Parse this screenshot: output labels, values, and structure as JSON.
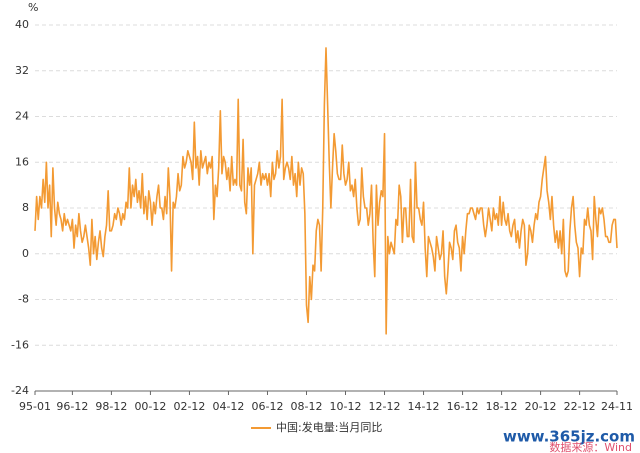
{
  "chart_data": {
    "type": "line",
    "y_label": "%",
    "legend": "中国:发电量:当月同比",
    "source": "数据来源：Wind",
    "watermark": "www.365jz.com",
    "color": "#f39a33",
    "grid": true,
    "ylim": [
      -24,
      40
    ],
    "yticks": [
      40,
      32,
      24,
      16,
      8,
      0,
      -8,
      -16,
      -24
    ],
    "categories": [
      "95-01",
      null,
      null,
      null,
      null,
      null,
      null,
      null,
      null,
      null,
      null,
      null,
      null,
      null,
      null,
      null,
      null,
      null,
      null,
      null,
      null,
      null,
      null,
      "96-12",
      null,
      null,
      null,
      null,
      null,
      null,
      null,
      null,
      null,
      null,
      null,
      null,
      null,
      null,
      null,
      null,
      null,
      null,
      null,
      null,
      null,
      null,
      null,
      "98-12",
      null,
      null,
      null,
      null,
      null,
      null,
      null,
      null,
      null,
      null,
      null,
      null,
      null,
      null,
      null,
      null,
      null,
      null,
      null,
      null,
      null,
      null,
      null,
      "00-12",
      null,
      null,
      null,
      null,
      null,
      null,
      null,
      null,
      null,
      null,
      null,
      null,
      null,
      null,
      null,
      null,
      null,
      null,
      null,
      null,
      null,
      null,
      null,
      "02-12",
      null,
      null,
      null,
      null,
      null,
      null,
      null,
      null,
      null,
      null,
      null,
      null,
      null,
      null,
      null,
      null,
      null,
      null,
      null,
      null,
      null,
      null,
      null,
      "04-12",
      null,
      null,
      null,
      null,
      null,
      null,
      null,
      null,
      null,
      null,
      null,
      null,
      null,
      null,
      null,
      null,
      null,
      null,
      null,
      null,
      null,
      null,
      null,
      "06-12",
      null,
      null,
      null,
      null,
      null,
      null,
      null,
      null,
      null,
      null,
      null,
      null,
      null,
      null,
      null,
      null,
      null,
      null,
      null,
      null,
      null,
      null,
      null,
      "08-12",
      null,
      null,
      null,
      null,
      null,
      null,
      null,
      null,
      null,
      null,
      null,
      null,
      null,
      null,
      null,
      null,
      null,
      null,
      null,
      null,
      null,
      null,
      null,
      "10-12",
      null,
      null,
      null,
      null,
      null,
      null,
      null,
      null,
      null,
      null,
      null,
      null,
      null,
      null,
      null,
      null,
      null,
      null,
      null,
      null,
      null,
      null,
      null,
      "12-12",
      null,
      null,
      null,
      null,
      null,
      null,
      null,
      null,
      null,
      null,
      null,
      null,
      null,
      null,
      null,
      null,
      null,
      null,
      null,
      null,
      null,
      null,
      null,
      "14-12",
      null,
      null,
      null,
      null,
      null,
      null,
      null,
      null,
      null,
      null,
      null,
      null,
      null,
      null,
      null,
      null,
      null,
      null,
      null,
      null,
      null,
      null,
      null,
      "16-12",
      null,
      null,
      null,
      null,
      null,
      null,
      null,
      null,
      null,
      null,
      null,
      null,
      null,
      null,
      null,
      null,
      null,
      null,
      null,
      null,
      null,
      null,
      null,
      "18-12",
      null,
      null,
      null,
      null,
      null,
      null,
      null,
      null,
      null,
      null,
      null,
      null,
      null,
      null,
      null,
      null,
      null,
      null,
      null,
      null,
      null,
      null,
      null,
      "20-12",
      null,
      null,
      null,
      null,
      null,
      null,
      null,
      null,
      null,
      null,
      null,
      null,
      null,
      null,
      null,
      null,
      null,
      null,
      null,
      null,
      null,
      null,
      null,
      "22-12",
      null,
      null,
      null,
      null,
      null,
      null,
      null,
      null,
      null,
      null,
      null,
      null,
      null,
      null,
      null,
      null,
      null,
      null,
      null,
      null,
      null,
      null,
      "24-11"
    ],
    "values": [
      4,
      10,
      6,
      10,
      8,
      13,
      9,
      16,
      8,
      12,
      3,
      15,
      8,
      5,
      9,
      7,
      6,
      4,
      7,
      5,
      6,
      5,
      4,
      6,
      1,
      5,
      3,
      7,
      4,
      2,
      3,
      5,
      3,
      1,
      -2,
      6,
      0,
      3,
      -1,
      2,
      4,
      1,
      -0.5,
      3,
      5,
      11,
      4,
      4,
      5,
      7,
      6,
      8,
      7,
      5,
      7,
      6,
      9,
      8,
      15,
      8,
      12,
      10,
      13,
      9,
      11,
      8,
      14,
      7,
      10,
      6,
      11,
      9,
      5,
      9,
      7,
      10,
      12,
      8,
      8,
      6,
      10,
      7,
      15,
      10,
      -3,
      9,
      8,
      10,
      14,
      11,
      12,
      17,
      15,
      16,
      18,
      17,
      16,
      13,
      23,
      15,
      17,
      12,
      18,
      15,
      16,
      17,
      14,
      16,
      15,
      17,
      6,
      12,
      10,
      15,
      25,
      14,
      17,
      16,
      13,
      15,
      11,
      17,
      12,
      13,
      12,
      27,
      12,
      11,
      20,
      9,
      7,
      15,
      12,
      15,
      0,
      12,
      13,
      14,
      16,
      12,
      14,
      13,
      14,
      12,
      14,
      10,
      16,
      13,
      14,
      18,
      15,
      17,
      27,
      13,
      15,
      16,
      15,
      13,
      17,
      12,
      14,
      10,
      16,
      12,
      15,
      14,
      7,
      -9,
      -12,
      -4,
      -8,
      -2,
      -3,
      4,
      6,
      5,
      -3,
      8,
      26,
      36,
      26,
      16,
      8,
      15,
      21,
      18,
      14,
      13,
      13,
      19,
      14,
      12,
      13,
      16,
      11,
      12,
      10,
      13,
      8,
      5,
      6,
      15,
      10,
      8,
      8,
      5,
      7,
      12,
      2,
      -4,
      12,
      5,
      9,
      11,
      10,
      21,
      -14,
      3,
      0,
      2,
      1,
      0,
      6,
      5,
      12,
      10,
      2,
      8,
      8,
      3,
      3,
      13,
      3,
      2,
      16,
      8,
      8,
      6,
      5,
      9,
      1,
      -4,
      3,
      2,
      1,
      -0.5,
      -3,
      3,
      1,
      -1,
      0,
      4,
      -4,
      -7,
      -3,
      2,
      1,
      -1,
      4,
      5,
      2,
      1,
      -3,
      3,
      0,
      4,
      7,
      7,
      8,
      8,
      7,
      6,
      8,
      7,
      8,
      8,
      5,
      3,
      5,
      8,
      6,
      4,
      8,
      6,
      7,
      5,
      10,
      5,
      9,
      6,
      5,
      7,
      4,
      3,
      5,
      6,
      2,
      4,
      1,
      4,
      6,
      5,
      -2,
      0,
      5,
      4,
      2,
      5,
      7,
      6,
      9,
      10,
      13,
      15,
      17,
      11,
      9,
      6,
      10,
      5,
      2,
      4,
      1,
      4,
      0,
      6,
      -3,
      -4,
      -3,
      4,
      8,
      10,
      5,
      2,
      1,
      -4,
      1,
      0,
      6,
      5,
      8,
      5,
      4,
      -1,
      10,
      6,
      3,
      8,
      7,
      8,
      6,
      3,
      3,
      2,
      2,
      5,
      6,
      6,
      1
    ]
  }
}
